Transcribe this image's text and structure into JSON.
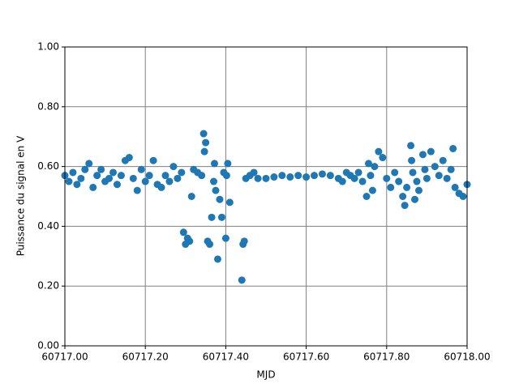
{
  "chart_data": {
    "type": "scatter",
    "xlabel": "MJD",
    "ylabel": "Puissance du signal en V",
    "color": "#1f77b4",
    "grid": true,
    "xlim": [
      60717,
      60718
    ],
    "xticks": [
      {
        "value": 60717,
        "label": "60717.00"
      },
      {
        "value": 60717.2,
        "label": "60717.20"
      },
      {
        "value": 60717.4,
        "label": "60717.40"
      },
      {
        "value": 60717.6,
        "label": "60717.60"
      },
      {
        "value": 60717.8,
        "label": "60717.80"
      },
      {
        "value": 60718,
        "label": "60718.00"
      }
    ],
    "ylim": [
      0,
      1
    ],
    "yticks": [
      {
        "value": 0,
        "label": "0.00"
      },
      {
        "value": 0.2,
        "label": "0.20"
      },
      {
        "value": 0.4,
        "label": "0.40"
      },
      {
        "value": 0.6,
        "label": "0.60"
      },
      {
        "value": 0.8,
        "label": "0.80"
      },
      {
        "value": 1,
        "label": "1.00"
      }
    ],
    "x": [
      60717.0,
      60717.01,
      60717.02,
      60717.03,
      60717.04,
      60717.05,
      60717.06,
      60717.07,
      60717.08,
      60717.09,
      60717.1,
      60717.11,
      60717.12,
      60717.13,
      60717.14,
      60717.15,
      60717.16,
      60717.17,
      60717.18,
      60717.19,
      60717.2,
      60717.21,
      60717.22,
      60717.23,
      60717.24,
      60717.25,
      60717.26,
      60717.27,
      60717.28,
      60717.29,
      60717.295,
      60717.3,
      60717.305,
      60717.31,
      60717.315,
      60717.32,
      60717.33,
      60717.34,
      60717.345,
      60717.347,
      60717.35,
      60717.355,
      60717.36,
      60717.365,
      60717.37,
      60717.372,
      60717.375,
      60717.38,
      60717.385,
      60717.39,
      60717.395,
      60717.4,
      60717.402,
      60717.405,
      60717.41,
      60717.44,
      60717.443,
      60717.446,
      60717.45,
      60717.46,
      60717.47,
      60717.48,
      60717.5,
      60717.52,
      60717.54,
      60717.56,
      60717.58,
      60717.6,
      60717.62,
      60717.64,
      60717.66,
      60717.68,
      60717.69,
      60717.7,
      60717.71,
      60717.72,
      60717.73,
      60717.74,
      60717.75,
      60717.755,
      60717.76,
      60717.765,
      60717.77,
      60717.78,
      60717.79,
      60717.8,
      60717.81,
      60717.82,
      60717.83,
      60717.84,
      60717.845,
      60717.85,
      60717.86,
      60717.862,
      60717.865,
      60717.87,
      60717.875,
      60717.88,
      60717.89,
      60717.895,
      60717.9,
      60717.91,
      60717.92,
      60717.93,
      60717.94,
      60717.95,
      60717.96,
      60717.965,
      60717.97,
      60717.98,
      60717.99,
      60718.0
    ],
    "values": [
      0.57,
      0.55,
      0.58,
      0.54,
      0.56,
      0.59,
      0.61,
      0.53,
      0.57,
      0.59,
      0.55,
      0.56,
      0.58,
      0.54,
      0.57,
      0.62,
      0.63,
      0.56,
      0.52,
      0.59,
      0.55,
      0.57,
      0.62,
      0.54,
      0.53,
      0.57,
      0.55,
      0.6,
      0.56,
      0.58,
      0.38,
      0.34,
      0.36,
      0.35,
      0.5,
      0.59,
      0.58,
      0.57,
      0.71,
      0.65,
      0.68,
      0.35,
      0.34,
      0.43,
      0.55,
      0.61,
      0.52,
      0.29,
      0.49,
      0.43,
      0.58,
      0.36,
      0.57,
      0.61,
      0.48,
      0.22,
      0.34,
      0.35,
      0.56,
      0.57,
      0.58,
      0.56,
      0.56,
      0.565,
      0.57,
      0.565,
      0.57,
      0.565,
      0.57,
      0.575,
      0.57,
      0.56,
      0.55,
      0.58,
      0.57,
      0.56,
      0.58,
      0.55,
      0.5,
      0.61,
      0.57,
      0.52,
      0.6,
      0.65,
      0.63,
      0.56,
      0.53,
      0.58,
      0.55,
      0.5,
      0.47,
      0.53,
      0.67,
      0.62,
      0.58,
      0.49,
      0.55,
      0.52,
      0.64,
      0.59,
      0.56,
      0.65,
      0.6,
      0.57,
      0.62,
      0.56,
      0.59,
      0.66,
      0.53,
      0.51,
      0.5,
      0.54
    ]
  }
}
